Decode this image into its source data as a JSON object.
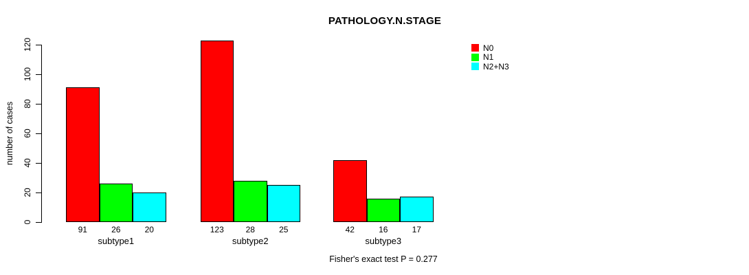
{
  "chart_data": {
    "type": "bar",
    "title": "PATHOLOGY.N.STAGE",
    "categories": [
      "subtype1",
      "subtype2",
      "subtype3"
    ],
    "series": [
      {
        "name": "N0",
        "color": "#ff0000",
        "values": [
          91,
          123,
          42
        ]
      },
      {
        "name": "N1",
        "color": "#00ff00",
        "values": [
          26,
          28,
          16
        ]
      },
      {
        "name": "N2+N3",
        "color": "#00ffff",
        "values": [
          20,
          25,
          17
        ]
      }
    ],
    "xlabel": "",
    "ylabel": "number of cases",
    "ylim": [
      0,
      120
    ],
    "yticks": [
      0,
      20,
      40,
      60,
      80,
      100,
      120
    ],
    "grid": false,
    "legend_position": "top-right",
    "legend_entries": [
      "N0",
      "N1",
      "N2+N3"
    ],
    "bar_value_labels_shown": true,
    "annotation": "Fisher's exact test P = 0.277"
  }
}
